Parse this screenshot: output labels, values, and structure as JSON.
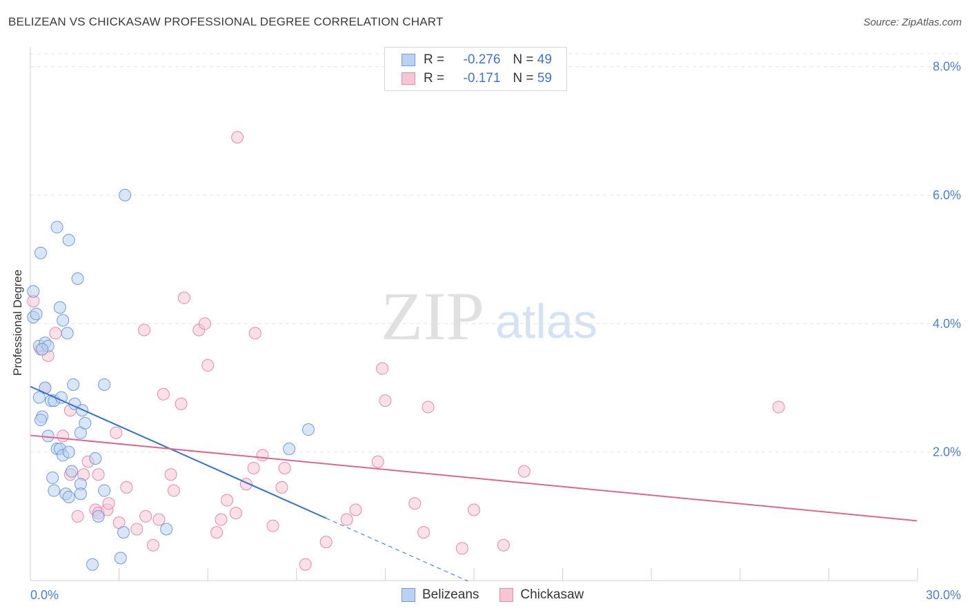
{
  "header": {
    "title": "BELIZEAN VS CHICKASAW PROFESSIONAL DEGREE CORRELATION CHART",
    "source": "Source: ZipAtlas.com"
  },
  "watermark": {
    "zip": "ZIP",
    "atlas": "atlas"
  },
  "legend": {
    "r_label": "R =",
    "n_label": "N =",
    "rows": [
      {
        "r": "-0.276",
        "n": "49"
      },
      {
        "r": "-0.171",
        "n": "59"
      }
    ]
  },
  "bottom_legend": [
    "Belizeans",
    "Chickasaw"
  ],
  "colors": {
    "blue_fill": "#b9d1f2",
    "blue_stroke": "#6f9ad9",
    "blue_line": "#2f6fd0",
    "pink_fill": "#f7c6d5",
    "pink_stroke": "#e58aa7",
    "pink_line": "#e0648f",
    "tick": "#4a7fd1"
  },
  "chart_data": {
    "type": "scatter",
    "title": "BELIZEAN VS CHICKASAW PROFESSIONAL DEGREE CORRELATION CHART",
    "xlabel": "",
    "ylabel": "Professional Degree",
    "xlim": [
      0,
      30
    ],
    "ylim": [
      0,
      8
    ],
    "x_tick_labels": [
      "0.0%",
      "30.0%"
    ],
    "y_tick_labels": [
      "2.0%",
      "4.0%",
      "6.0%",
      "8.0%"
    ],
    "y_ticks": [
      2,
      4,
      6,
      8
    ],
    "grid": true,
    "series": [
      {
        "name": "Belizeans",
        "r": -0.276,
        "n": 49,
        "points": [
          [
            0.1,
            4.5
          ],
          [
            0.1,
            4.1
          ],
          [
            0.3,
            3.65
          ],
          [
            0.2,
            4.15
          ],
          [
            0.35,
            5.1
          ],
          [
            0.5,
            3.7
          ],
          [
            0.6,
            3.65
          ],
          [
            0.5,
            3.0
          ],
          [
            0.3,
            2.85
          ],
          [
            0.4,
            2.55
          ],
          [
            0.35,
            2.5
          ],
          [
            0.7,
            2.8
          ],
          [
            0.8,
            2.8
          ],
          [
            0.6,
            2.25
          ],
          [
            0.9,
            5.5
          ],
          [
            1.0,
            4.25
          ],
          [
            1.05,
            2.85
          ],
          [
            1.1,
            4.05
          ],
          [
            1.25,
            3.85
          ],
          [
            1.3,
            5.3
          ],
          [
            1.45,
            3.05
          ],
          [
            1.5,
            2.75
          ],
          [
            1.6,
            4.7
          ],
          [
            1.75,
            2.65
          ],
          [
            1.7,
            2.3
          ],
          [
            1.85,
            2.45
          ],
          [
            2.5,
            3.05
          ],
          [
            0.9,
            2.05
          ],
          [
            1.0,
            2.05
          ],
          [
            1.1,
            1.95
          ],
          [
            1.3,
            2.0
          ],
          [
            1.4,
            1.7
          ],
          [
            0.75,
            1.6
          ],
          [
            0.8,
            1.4
          ],
          [
            1.2,
            1.35
          ],
          [
            1.3,
            1.3
          ],
          [
            1.7,
            1.5
          ],
          [
            1.7,
            1.35
          ],
          [
            2.2,
            1.9
          ],
          [
            2.5,
            1.4
          ],
          [
            2.3,
            1.0
          ],
          [
            3.2,
            6.0
          ],
          [
            3.15,
            0.75
          ],
          [
            3.05,
            0.35
          ],
          [
            2.1,
            0.25
          ],
          [
            4.6,
            0.8
          ],
          [
            9.4,
            2.35
          ],
          [
            8.75,
            2.05
          ],
          [
            0.4,
            3.6
          ]
        ],
        "trend": {
          "x0": 0,
          "y0": 3.02,
          "x1": 10.0,
          "y1": 0.97,
          "dash_to_x": 14.8,
          "dash_to_y": -0.01
        }
      },
      {
        "name": "Chickasaw",
        "r": -0.171,
        "n": 59,
        "points": [
          [
            0.1,
            4.35
          ],
          [
            0.35,
            3.6
          ],
          [
            0.6,
            3.5
          ],
          [
            0.5,
            3.0
          ],
          [
            0.85,
            3.85
          ],
          [
            1.1,
            2.25
          ],
          [
            1.35,
            1.65
          ],
          [
            1.35,
            2.65
          ],
          [
            1.6,
            1.0
          ],
          [
            1.8,
            1.65
          ],
          [
            1.95,
            1.85
          ],
          [
            2.2,
            1.1
          ],
          [
            2.3,
            1.05
          ],
          [
            2.3,
            1.65
          ],
          [
            2.6,
            1.1
          ],
          [
            2.65,
            1.2
          ],
          [
            2.9,
            2.3
          ],
          [
            3.0,
            0.9
          ],
          [
            3.25,
            1.45
          ],
          [
            3.6,
            0.8
          ],
          [
            3.85,
            3.9
          ],
          [
            3.9,
            1.0
          ],
          [
            4.15,
            0.55
          ],
          [
            4.35,
            0.95
          ],
          [
            4.5,
            2.9
          ],
          [
            4.75,
            1.65
          ],
          [
            4.85,
            1.4
          ],
          [
            5.1,
            2.75
          ],
          [
            5.2,
            4.4
          ],
          [
            5.7,
            3.9
          ],
          [
            5.9,
            4.0
          ],
          [
            6.0,
            3.35
          ],
          [
            6.3,
            0.75
          ],
          [
            6.45,
            0.95
          ],
          [
            6.65,
            1.25
          ],
          [
            6.95,
            1.05
          ],
          [
            7.0,
            6.9
          ],
          [
            7.3,
            1.5
          ],
          [
            7.55,
            1.75
          ],
          [
            7.6,
            3.85
          ],
          [
            7.85,
            1.95
          ],
          [
            8.2,
            0.85
          ],
          [
            8.5,
            1.45
          ],
          [
            8.6,
            1.75
          ],
          [
            9.3,
            0.25
          ],
          [
            10.0,
            0.6
          ],
          [
            10.7,
            0.95
          ],
          [
            11.0,
            1.1
          ],
          [
            11.75,
            1.85
          ],
          [
            11.9,
            3.3
          ],
          [
            12.0,
            2.8
          ],
          [
            13.0,
            1.2
          ],
          [
            13.3,
            0.75
          ],
          [
            13.45,
            2.7
          ],
          [
            14.6,
            0.5
          ],
          [
            15.0,
            1.1
          ],
          [
            16.0,
            0.55
          ],
          [
            16.7,
            1.7
          ],
          [
            25.3,
            2.7
          ]
        ],
        "trend": {
          "x0": 0,
          "y0": 2.26,
          "x1": 30,
          "y1": 0.93
        }
      }
    ]
  }
}
